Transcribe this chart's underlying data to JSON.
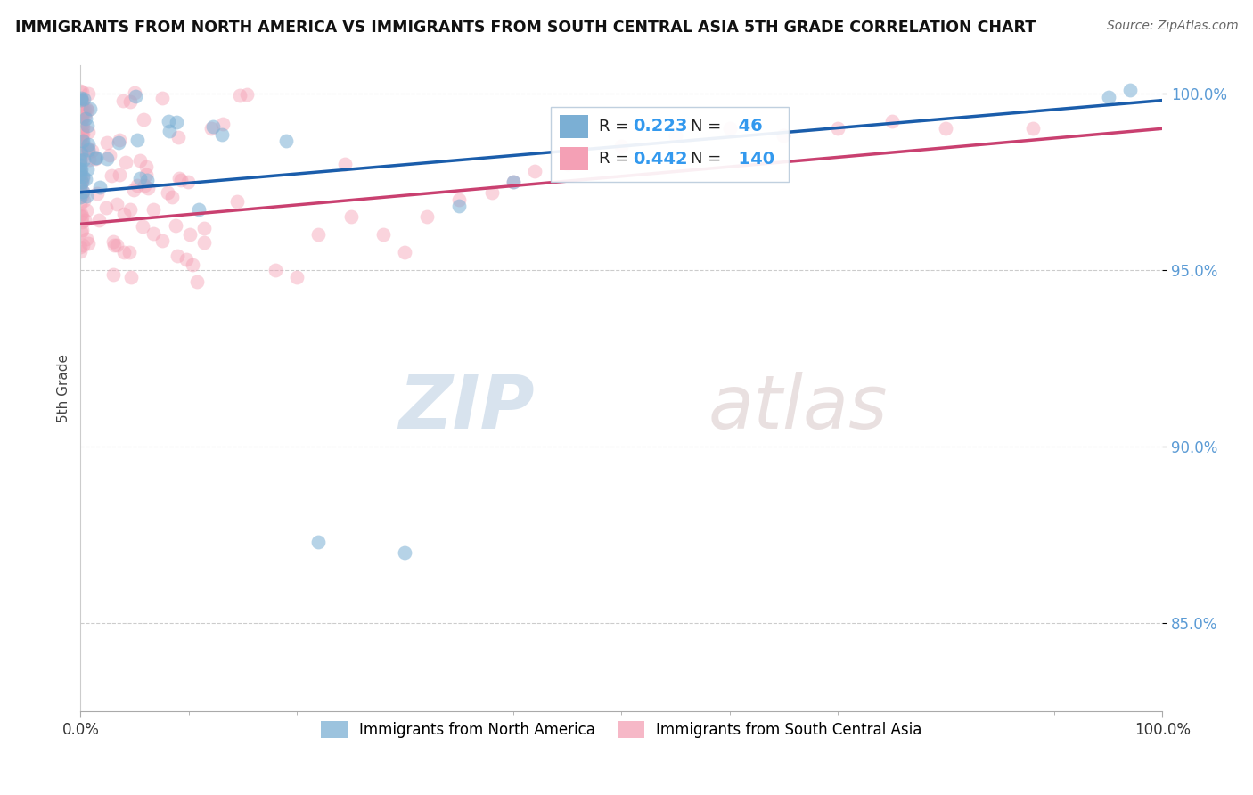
{
  "title": "IMMIGRANTS FROM NORTH AMERICA VS IMMIGRANTS FROM SOUTH CENTRAL ASIA 5TH GRADE CORRELATION CHART",
  "source": "Source: ZipAtlas.com",
  "ylabel": "5th Grade",
  "blue_R": 0.223,
  "blue_N": 46,
  "pink_R": 0.442,
  "pink_N": 140,
  "blue_color": "#7BAFD4",
  "pink_color": "#F4A0B5",
  "blue_line_color": "#1A5DAB",
  "pink_line_color": "#C94070",
  "legend_label_blue": "Immigrants from North America",
  "legend_label_pink": "Immigrants from South Central Asia",
  "watermark_zip": "ZIP",
  "watermark_atlas": "atlas",
  "xlim": [
    0.0,
    1.0
  ],
  "ylim": [
    0.825,
    1.008
  ],
  "yticks": [
    0.85,
    0.9,
    0.95,
    1.0
  ],
  "ytick_labels": [
    "85.0%",
    "90.0%",
    "95.0%",
    "100.0%"
  ]
}
